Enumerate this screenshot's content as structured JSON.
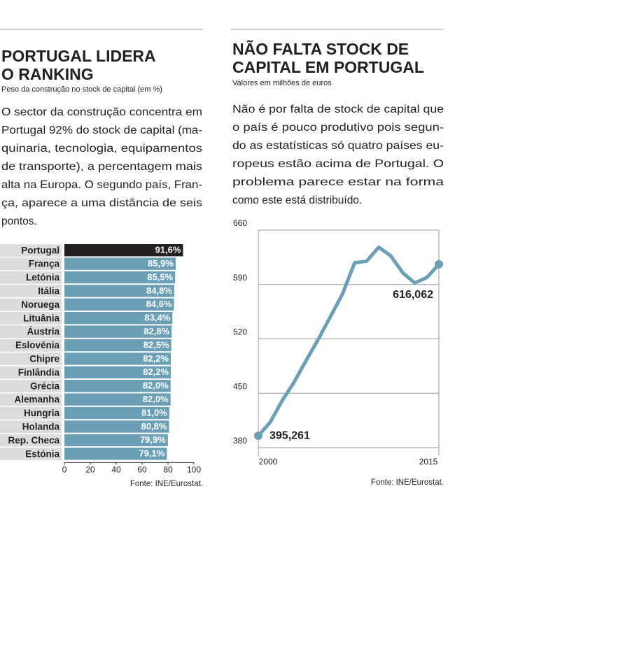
{
  "chart_data": [
    {
      "type": "hbar",
      "title": [
        "PORTUGAL LIDERA",
        "O RANKING"
      ],
      "subtitle": "Peso da construção no stock de capital (em %)",
      "text": [
        "O sector da construção concentra em",
        "Portugal 92% do stock de capital (ma-",
        "quinaria, tecnologia, equipamentos",
        "de transporte), a percentagem mais",
        "alta na Europa. O segundo país, Fran-",
        "ça, aparece a uma distância de seis",
        "pontos."
      ],
      "categories": [
        "Portugal",
        "França",
        "Letónia",
        "Itália",
        "Noruega",
        "Lituânia",
        "Áustria",
        "Eslovénia",
        "Chipre",
        "Finlândia",
        "Grécia",
        "Alemanha",
        "Hungria",
        "Holanda",
        "Rep. Checa",
        "Estónia"
      ],
      "values": [
        91.6,
        85.9,
        85.5,
        84.8,
        84.6,
        83.4,
        82.8,
        82.5,
        82.2,
        82.2,
        82.0,
        82.0,
        81.0,
        80.8,
        79.9,
        79.1
      ],
      "value_labels": [
        "91,6%",
        "85,9%",
        "85,5%",
        "84,8%",
        "84,6%",
        "83,4%",
        "82,8%",
        "82,5%",
        "82,2%",
        "82,2%",
        "82,0%",
        "82,0%",
        "81,0%",
        "80,8%",
        "79,9%",
        "79,1%"
      ],
      "colors": [
        "#231f20",
        "#6a9fb5",
        "#6a9fb5",
        "#6a9fb5",
        "#6a9fb5",
        "#6a9fb5",
        "#6a9fb5",
        "#6a9fb5",
        "#6a9fb5",
        "#6a9fb5",
        "#6a9fb5",
        "#6a9fb5",
        "#6a9fb5",
        "#6a9fb5",
        "#6a9fb5",
        "#6a9fb5"
      ],
      "xlim": [
        0,
        100
      ],
      "xticks": [
        0,
        20,
        40,
        60,
        80,
        100
      ],
      "source": "Fonte: INE/Eurostat."
    },
    {
      "type": "line",
      "title": [
        "NÃO FALTA STOCK DE",
        "CAPITAL EM PORTUGAL"
      ],
      "subtitle": "Valores em milhões de euros",
      "text": [
        "Não é por falta de stock de capital que",
        "o país é pouco produtivo pois segun-",
        "do as estatísticas só quatro países eu-",
        "ropeus estão acima de Portugal. O",
        "problema parece estar na forma",
        "como este está distribuído."
      ],
      "x": [
        2000,
        2001,
        2002,
        2003,
        2004,
        2005,
        2006,
        2007,
        2008,
        2009,
        2010,
        2011,
        2012,
        2013,
        2014,
        2015
      ],
      "values": [
        395.261,
        413,
        441,
        465,
        493,
        520,
        549,
        578,
        618,
        620,
        638,
        627,
        605,
        592,
        599,
        616.062
      ],
      "value_labels": [
        "395,261",
        null,
        null,
        null,
        null,
        null,
        null,
        null,
        null,
        null,
        null,
        null,
        null,
        null,
        null,
        "616,062"
      ],
      "color": "#6a9fb5",
      "xlim": [
        2000,
        2015
      ],
      "xticks": [
        2000,
        2015
      ],
      "ylim": [
        380,
        660
      ],
      "yticks": [
        380,
        450,
        520,
        590,
        660
      ],
      "grid": true,
      "source": "Fonte: INE/Eurostat."
    }
  ]
}
